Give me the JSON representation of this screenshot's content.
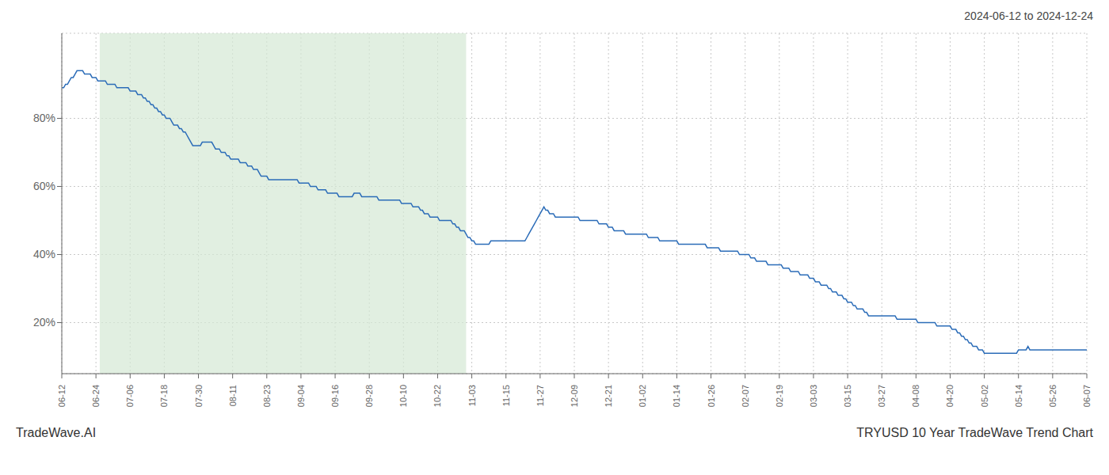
{
  "chart_data": {
    "type": "line",
    "title": "2024-06-12 to 2024-12-24",
    "annotations": [
      "TradeWave.AI",
      "TRYUSD 10 Year TradeWave Trend Chart"
    ],
    "color": "#2b6cb8",
    "grid": true,
    "ylim": [
      5,
      105
    ],
    "yticks": [
      {
        "value": 20,
        "label": "20%"
      },
      {
        "value": 40,
        "label": "40%"
      },
      {
        "value": 60,
        "label": "60%"
      },
      {
        "value": 80,
        "label": "80%"
      }
    ],
    "shaded_range": {
      "from": 20,
      "to": 213,
      "color": "#d4e8d4"
    },
    "categories": [
      "06-12",
      null,
      null,
      null,
      null,
      null,
      null,
      null,
      null,
      null,
      null,
      null,
      null,
      null,
      null,
      null,
      null,
      null,
      "06-24",
      null,
      null,
      null,
      null,
      null,
      null,
      null,
      null,
      null,
      null,
      null,
      null,
      null,
      null,
      null,
      null,
      null,
      "07-06",
      null,
      null,
      null,
      null,
      null,
      null,
      null,
      null,
      null,
      null,
      null,
      null,
      null,
      null,
      null,
      null,
      null,
      "07-18",
      null,
      null,
      null,
      null,
      null,
      null,
      null,
      null,
      null,
      null,
      null,
      null,
      null,
      null,
      null,
      null,
      null,
      "07-30",
      null,
      null,
      null,
      null,
      null,
      null,
      null,
      null,
      null,
      null,
      null,
      null,
      null,
      null,
      null,
      null,
      null,
      "08-11",
      null,
      null,
      null,
      null,
      null,
      null,
      null,
      null,
      null,
      null,
      null,
      null,
      null,
      null,
      null,
      null,
      null,
      "08-23",
      null,
      null,
      null,
      null,
      null,
      null,
      null,
      null,
      null,
      null,
      null,
      null,
      null,
      null,
      null,
      null,
      null,
      "09-04",
      null,
      null,
      null,
      null,
      null,
      null,
      null,
      null,
      null,
      null,
      null,
      null,
      null,
      null,
      null,
      null,
      null,
      "09-16",
      null,
      null,
      null,
      null,
      null,
      null,
      null,
      null,
      null,
      null,
      null,
      null,
      null,
      null,
      null,
      null,
      null,
      "09-28",
      null,
      null,
      null,
      null,
      null,
      null,
      null,
      null,
      null,
      null,
      null,
      null,
      null,
      null,
      null,
      null,
      null,
      "10-10",
      null,
      null,
      null,
      null,
      null,
      null,
      null,
      null,
      null,
      null,
      null,
      null,
      null,
      null,
      null,
      null,
      null,
      "10-22",
      null,
      null,
      null,
      null,
      null,
      null,
      null,
      null,
      null,
      null,
      null,
      null,
      null,
      null,
      null,
      null,
      null,
      "11-03",
      null,
      null,
      null,
      null,
      null,
      null,
      null,
      null,
      null,
      null,
      null,
      null,
      null,
      null,
      null,
      null,
      null,
      "11-15",
      null,
      null,
      null,
      null,
      null,
      null,
      null,
      null,
      null,
      null,
      null,
      null,
      null,
      null,
      null,
      null,
      null,
      "11-27",
      null,
      null,
      null,
      null,
      null,
      null,
      null,
      null,
      null,
      null,
      null,
      null,
      null,
      null,
      null,
      null,
      null,
      "12-09",
      null,
      null,
      null,
      null,
      null,
      null,
      null,
      null,
      null,
      null,
      null,
      null,
      null,
      null,
      null,
      null,
      null,
      "12-21",
      null,
      null,
      null,
      null,
      null,
      null,
      null,
      null,
      null,
      null,
      null,
      null,
      null,
      null,
      null,
      null,
      null,
      "01-02",
      null,
      null,
      null,
      null,
      null,
      null,
      null,
      null,
      null,
      null,
      null,
      null,
      null,
      null,
      null,
      null,
      null,
      "01-14",
      null,
      null,
      null,
      null,
      null,
      null,
      null,
      null,
      null,
      null,
      null,
      null,
      null,
      null,
      null,
      null,
      null,
      "01-26",
      null,
      null,
      null,
      null,
      null,
      null,
      null,
      null,
      null,
      null,
      null,
      null,
      null,
      null,
      null,
      null,
      null,
      "02-07",
      null,
      null,
      null,
      null,
      null,
      null,
      null,
      null,
      null,
      null,
      null,
      null,
      null,
      null,
      null,
      null,
      null,
      "02-19",
      null,
      null,
      null,
      null,
      null,
      null,
      null,
      null,
      null,
      null,
      null,
      null,
      null,
      null,
      null,
      null,
      null,
      "03-03",
      null,
      null,
      null,
      null,
      null,
      null,
      null,
      null,
      null,
      null,
      null,
      null,
      null,
      null,
      null,
      null,
      null,
      "03-15",
      null,
      null,
      null,
      null,
      null,
      null,
      null,
      null,
      null,
      null,
      null,
      null,
      null,
      null,
      null,
      null,
      null,
      "03-27",
      null,
      null,
      null,
      null,
      null,
      null,
      null,
      null,
      null,
      null,
      null,
      null,
      null,
      null,
      null,
      null,
      null,
      "04-08",
      null,
      null,
      null,
      null,
      null,
      null,
      null,
      null,
      null,
      null,
      null,
      null,
      null,
      null,
      null,
      null,
      null,
      "04-20",
      null,
      null,
      null,
      null,
      null,
      null,
      null,
      null,
      null,
      null,
      null,
      null,
      null,
      null,
      null,
      null,
      null,
      "05-02",
      null,
      null,
      null,
      null,
      null,
      null,
      null,
      null,
      null,
      null,
      null,
      null,
      null,
      null,
      null,
      null,
      null,
      "05-14",
      null,
      null,
      null,
      null,
      null,
      null,
      null,
      null,
      null,
      null,
      null,
      null,
      null,
      null,
      null,
      null,
      null,
      "05-26",
      null,
      null,
      null,
      null,
      null,
      null,
      null,
      null,
      null,
      null,
      null,
      null,
      null,
      null,
      null,
      null,
      null,
      "06-07"
    ],
    "values": [
      89,
      89,
      90,
      90,
      91,
      92,
      92,
      93,
      94,
      94,
      94,
      94,
      93,
      93,
      93,
      93,
      92,
      92,
      92,
      91,
      91,
      91,
      91,
      91,
      90,
      90,
      90,
      90,
      90,
      89,
      89,
      89,
      89,
      89,
      89,
      89,
      88,
      88,
      88,
      88,
      87,
      87,
      87,
      86,
      86,
      85,
      85,
      84,
      84,
      83,
      83,
      82,
      82,
      81,
      81,
      80,
      80,
      80,
      79,
      78,
      78,
      78,
      77,
      77,
      76,
      76,
      75,
      74,
      73,
      72,
      72,
      72,
      72,
      72,
      73,
      73,
      73,
      73,
      73,
      73,
      72,
      71,
      71,
      71,
      70,
      70,
      70,
      69,
      69,
      68,
      68,
      68,
      68,
      68,
      67,
      67,
      67,
      67,
      66,
      66,
      66,
      65,
      65,
      65,
      64,
      63,
      63,
      63,
      63,
      62,
      62,
      62,
      62,
      62,
      62,
      62,
      62,
      62,
      62,
      62,
      62,
      62,
      62,
      62,
      62,
      61,
      61,
      61,
      61,
      61,
      61,
      60,
      60,
      60,
      60,
      59,
      59,
      59,
      59,
      59,
      58,
      58,
      58,
      58,
      58,
      58,
      57,
      57,
      57,
      57,
      57,
      57,
      57,
      57,
      58,
      58,
      58,
      58,
      57,
      57,
      57,
      57,
      57,
      57,
      57,
      57,
      57,
      56,
      56,
      56,
      56,
      56,
      56,
      56,
      56,
      56,
      56,
      56,
      56,
      55,
      55,
      55,
      55,
      55,
      55,
      54,
      54,
      54,
      54,
      53,
      53,
      52,
      52,
      52,
      51,
      51,
      51,
      51,
      51,
      50,
      50,
      50,
      50,
      50,
      50,
      50,
      49,
      49,
      48,
      48,
      47,
      47,
      47,
      46,
      45,
      45,
      44,
      44,
      43,
      43,
      43,
      43,
      43,
      43,
      43,
      43,
      44,
      44,
      44,
      44,
      44,
      44,
      44,
      44,
      44,
      44,
      44,
      44,
      44,
      44,
      44,
      44,
      44,
      44,
      44,
      45,
      46,
      47,
      48,
      49,
      50,
      51,
      52,
      53,
      54,
      53,
      53,
      52,
      52,
      52,
      51,
      51,
      51,
      51,
      51,
      51,
      51,
      51,
      51,
      51,
      51,
      51,
      51,
      50,
      50,
      50,
      50,
      50,
      50,
      50,
      50,
      50,
      50,
      49,
      49,
      49,
      49,
      49,
      48,
      48,
      48,
      47,
      47,
      47,
      47,
      47,
      47,
      46,
      46,
      46,
      46,
      46,
      46,
      46,
      46,
      46,
      46,
      46,
      46,
      45,
      45,
      45,
      45,
      45,
      45,
      44,
      44,
      44,
      44,
      44,
      44,
      44,
      44,
      44,
      44,
      43,
      43,
      43,
      43,
      43,
      43,
      43,
      43,
      43,
      43,
      43,
      43,
      43,
      43,
      43,
      42,
      42,
      42,
      42,
      42,
      42,
      42,
      41,
      41,
      41,
      41,
      41,
      41,
      41,
      41,
      41,
      41,
      40,
      40,
      40,
      40,
      40,
      40,
      39,
      39,
      39,
      38,
      38,
      38,
      38,
      38,
      38,
      37,
      37,
      37,
      37,
      37,
      37,
      37,
      37,
      36,
      36,
      36,
      36,
      35,
      35,
      35,
      35,
      35,
      34,
      34,
      34,
      34,
      34,
      33,
      33,
      33,
      32,
      32,
      32,
      31,
      31,
      31,
      31,
      30,
      30,
      29,
      29,
      29,
      28,
      28,
      28,
      27,
      27,
      26,
      26,
      26,
      25,
      25,
      24,
      24,
      24,
      24,
      23,
      23,
      22,
      22,
      22,
      22,
      22,
      22,
      22,
      22,
      22,
      22,
      22,
      22,
      22,
      22,
      22,
      21,
      21,
      21,
      21,
      21,
      21,
      21,
      21,
      21,
      21,
      21,
      20,
      20,
      20,
      20,
      20,
      20,
      20,
      20,
      20,
      20,
      19,
      19,
      19,
      19,
      19,
      19,
      19,
      19,
      18,
      18,
      18,
      17,
      17,
      16,
      16,
      15,
      15,
      14,
      14,
      13,
      13,
      13,
      12,
      12,
      12,
      11,
      11,
      11,
      11,
      11,
      11,
      11,
      11,
      11,
      11,
      11,
      11,
      11,
      11,
      11,
      11,
      11,
      11,
      12,
      12,
      12,
      12,
      12,
      13,
      12,
      12,
      12,
      12,
      12,
      12,
      12,
      12,
      12,
      12,
      12,
      12,
      12,
      12,
      12,
      12,
      12,
      12,
      12,
      12,
      12,
      12,
      12,
      12,
      12,
      12,
      12,
      12,
      12,
      12,
      12
    ]
  }
}
